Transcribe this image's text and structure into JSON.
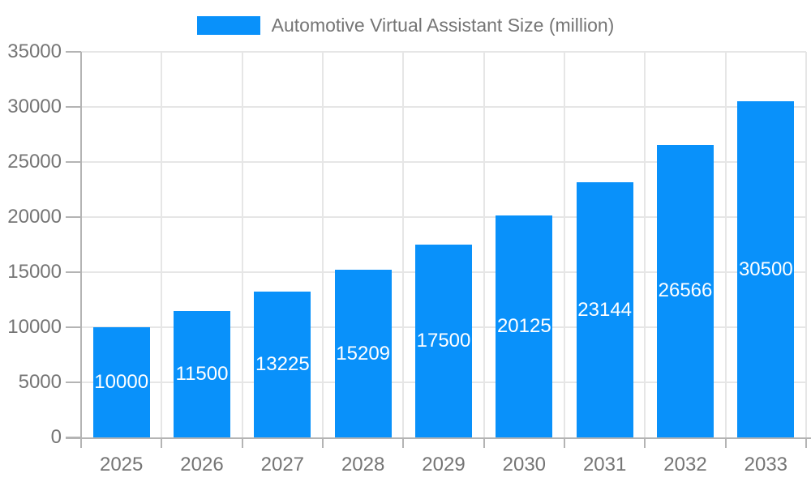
{
  "legend": {
    "label": "Automotive Virtual Assistant Size (million)"
  },
  "chart_data": {
    "type": "bar",
    "title": "Automotive Virtual Assistant Size (million)",
    "categories": [
      "2025",
      "2026",
      "2027",
      "2028",
      "2029",
      "2030",
      "2031",
      "2032",
      "2033"
    ],
    "values": [
      10000,
      11500,
      13225,
      15209,
      17500,
      20125,
      23144,
      26566,
      30500
    ],
    "value_labels": [
      "10000",
      "11500",
      "13225",
      "15209",
      "17500",
      "20125",
      "23144",
      "26566",
      "30500"
    ],
    "series": [
      {
        "name": "Automotive Virtual Assistant Size (million)",
        "values": [
          10000,
          11500,
          13225,
          15209,
          17500,
          20125,
          23144,
          26566,
          30500
        ]
      }
    ],
    "xlabel": "",
    "ylabel": "",
    "ylim": [
      0,
      35000
    ],
    "ytick_step": 5000,
    "ytick_labels": [
      "0",
      "5000",
      "10000",
      "15000",
      "20000",
      "25000",
      "30000",
      "35000"
    ],
    "grid": true,
    "legend_position": "top",
    "colors": {
      "bar": "#0991fa",
      "value_label": "#ffffff",
      "axis_text": "#757575",
      "grid_line": "#e6e6e6",
      "axis_line": "#b4b4b4",
      "background": "#ffffff"
    }
  }
}
